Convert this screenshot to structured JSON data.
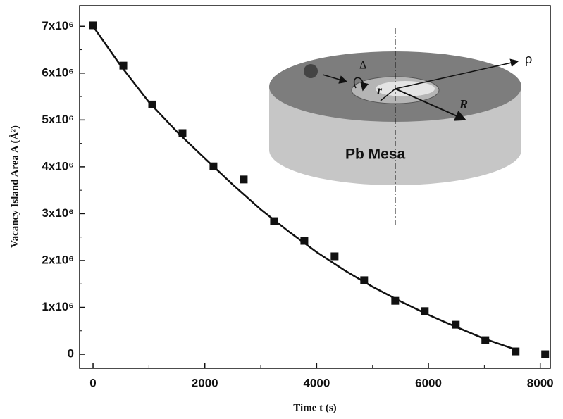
{
  "chart_data": {
    "type": "scatter",
    "x_label": "Time t (s)",
    "y_label": "Vacancy Island Area A (Å²)",
    "xlim": [
      -240,
      8180
    ],
    "ylim": [
      -300000,
      7440000
    ],
    "xticks": [
      0,
      2000,
      4000,
      6000,
      8000
    ],
    "yticks": [
      0,
      {
        "value": 1000000,
        "label": "1x10⁶"
      },
      {
        "value": 2000000,
        "label": "2x10⁶"
      },
      {
        "value": 3000000,
        "label": "3x10⁶"
      },
      {
        "value": 4000000,
        "label": "4x10⁶"
      },
      {
        "value": 5000000,
        "label": "5x10⁶"
      },
      {
        "value": 6000000,
        "label": "6x10⁶"
      },
      {
        "value": 7000000,
        "label": "7x10⁶"
      }
    ],
    "minor_ticks": true,
    "series": [
      {
        "type": "scatter",
        "color": "#111111",
        "x": [
          0,
          542,
          1058,
          1600,
          2154,
          2696,
          3238,
          3780,
          4321,
          4850,
          5405,
          5934,
          6488,
          7017,
          7559,
          8088
        ],
        "values": [
          7020000,
          6160000,
          5330000,
          4720000,
          4010000,
          3730000,
          2840000,
          2420000,
          2090000,
          1580000,
          1140000,
          920000,
          630000,
          300000,
          60000,
          0
        ]
      },
      {
        "type": "line",
        "color": "#111111",
        "x": [
          0,
          500,
          1000,
          1500,
          2000,
          2500,
          3000,
          3500,
          4000,
          4500,
          5000,
          5500,
          6000,
          6500,
          7000,
          7560
        ],
        "values": [
          7000000,
          6150000,
          5380000,
          4750000,
          4180000,
          3620000,
          3090000,
          2620000,
          2180000,
          1790000,
          1440000,
          1130000,
          840000,
          580000,
          330000,
          100000
        ]
      }
    ],
    "annotations": [
      "Pb Mesa",
      "Δ",
      "r",
      "R",
      "ρ"
    ]
  }
}
